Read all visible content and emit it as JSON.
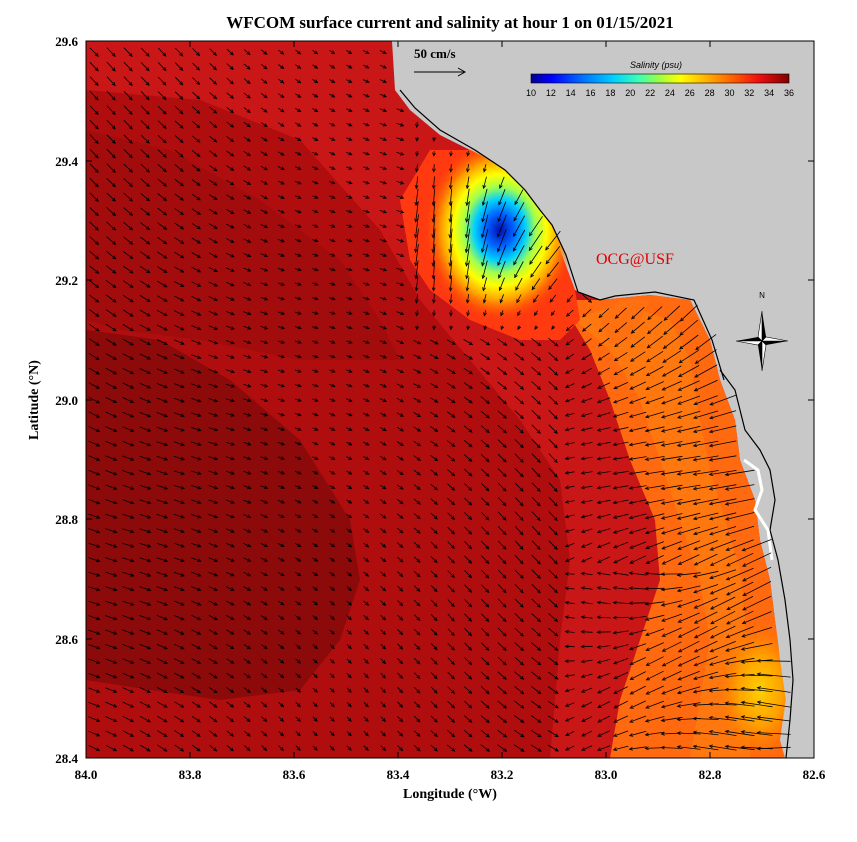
{
  "title": "WFCOM surface current and salinity at hour 1 on 01/15/2021",
  "x_axis": {
    "label": "Longitude (°W)",
    "ticks": [
      "84.0",
      "83.8",
      "83.6",
      "83.4",
      "83.2",
      "83.0",
      "82.8",
      "82.6"
    ]
  },
  "y_axis": {
    "label": "Latitude (°N)",
    "ticks": [
      "29.6",
      "29.4",
      "29.2",
      "29.0",
      "28.8",
      "28.6",
      "28.4"
    ]
  },
  "scale_arrow": {
    "label": "50 cm/s"
  },
  "colorbar": {
    "title": "Salinity (psu)",
    "ticks": [
      "10",
      "12",
      "14",
      "16",
      "18",
      "20",
      "22",
      "24",
      "26",
      "28",
      "30",
      "32",
      "34",
      "36"
    ]
  },
  "credit": "OCG@USF",
  "compass": {
    "label": "N"
  },
  "colors": {
    "land": "#c8c8c8",
    "deep_water": "#8e0a0a",
    "mid_water": "#c81414",
    "coastal_water": "#ff6600",
    "plume_low": "#0020c0",
    "credit": "#e00000"
  }
}
